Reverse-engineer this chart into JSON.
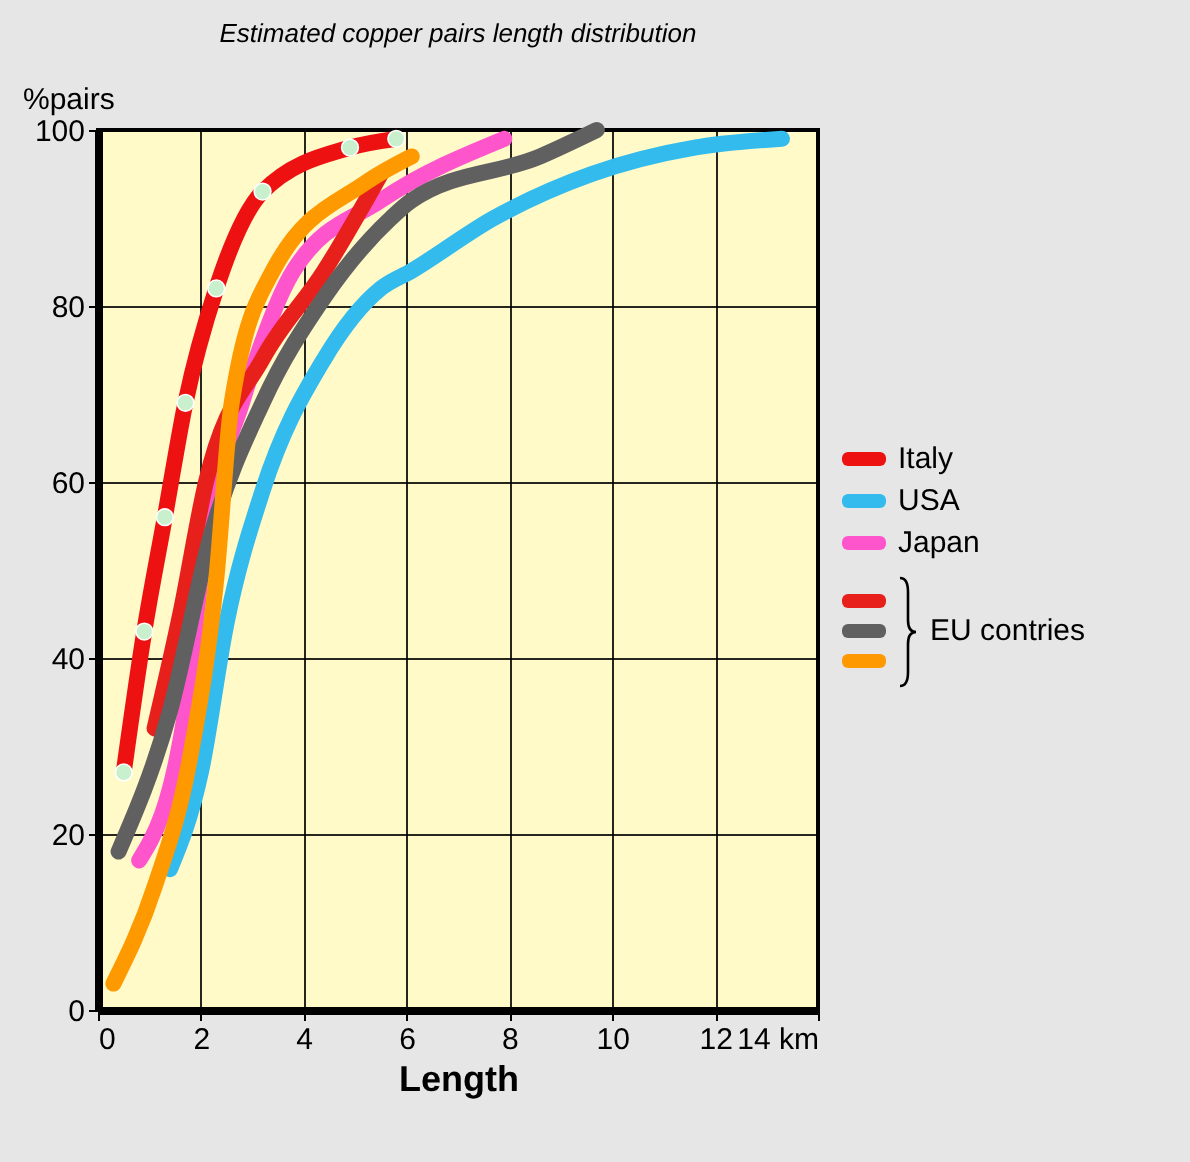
{
  "chart_data": {
    "type": "line",
    "title": "Estimated copper pairs length distribution",
    "xlabel": "Length",
    "ylabel": "%pairs",
    "xlim": [
      0,
      14
    ],
    "ylim": [
      0,
      100
    ],
    "xticks": [
      0,
      2,
      4,
      6,
      8,
      10,
      12,
      {
        "value": 14,
        "label": "14 km"
      }
    ],
    "yticks": [
      0,
      20,
      40,
      60,
      80,
      100
    ],
    "grid": true,
    "legend": "right",
    "annotations": [
      "EU contries"
    ],
    "series": [
      {
        "name": "Italy",
        "color": "#ee1111",
        "marker": "circle",
        "x": [
          0.5,
          0.9,
          1.3,
          1.7,
          2.3,
          3.2,
          4.9,
          5.8
        ],
        "values": [
          27,
          43,
          56,
          69,
          82,
          93,
          98,
          99
        ]
      },
      {
        "name": "USA",
        "color": "#33bbee",
        "x": [
          1.4,
          2.0,
          2.5,
          3.2,
          4.4,
          5.5,
          6.1,
          7.7,
          9.6,
          11.6,
          13.3
        ],
        "values": [
          16,
          27,
          44,
          59,
          74,
          82,
          84,
          90,
          95,
          98,
          99
        ]
      },
      {
        "name": "Japan",
        "color": "#ff55cc",
        "x": [
          0.8,
          1.7,
          2.1,
          2.8,
          3.8,
          5.5,
          7.9
        ],
        "values": [
          17,
          34,
          54,
          69,
          84,
          92,
          99
        ]
      },
      {
        "color": "#e8201c",
        "x": [
          1.1,
          1.6,
          2.1,
          3.2,
          4.4,
          5.5
        ],
        "values": [
          32,
          45,
          60,
          74,
          84,
          95
        ]
      },
      {
        "color": "#606060",
        "x": [
          0.4,
          1.4,
          2.2,
          3.2,
          4.4,
          5.7,
          6.1,
          8.6,
          9.7
        ],
        "values": [
          18,
          34,
          54,
          69,
          81,
          90,
          92,
          97,
          100
        ]
      },
      {
        "color": "#ff9900",
        "x": [
          0.3,
          1.1,
          1.8,
          2.3,
          2.6,
          3.4,
          5.2,
          6.1
        ],
        "values": [
          3,
          14,
          29,
          49,
          69,
          84,
          94,
          97
        ]
      }
    ]
  }
}
